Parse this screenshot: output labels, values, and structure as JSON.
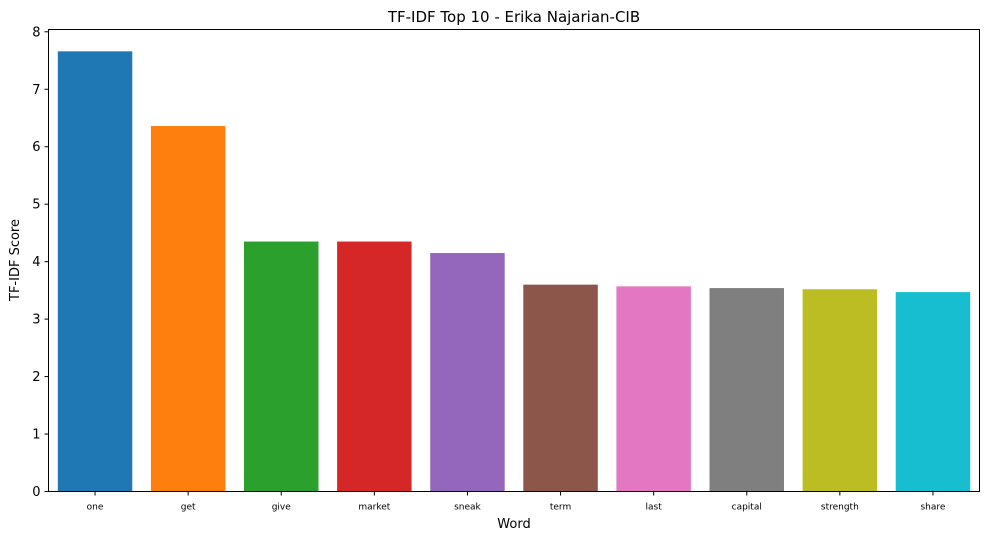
{
  "chart_data": {
    "type": "bar",
    "title": "TF-IDF Top 10 - Erika Najarian-CIB",
    "xlabel": "Word",
    "ylabel": "TF-IDF Score",
    "categories": [
      "one",
      "get",
      "give",
      "market",
      "sneak",
      "term",
      "last",
      "capital",
      "strength",
      "share"
    ],
    "values": [
      7.66,
      6.36,
      4.35,
      4.35,
      4.15,
      3.6,
      3.57,
      3.54,
      3.52,
      3.47
    ],
    "colors": [
      "#1f77b4",
      "#ff7f0e",
      "#2ca02c",
      "#d62728",
      "#9467bd",
      "#8c564b",
      "#e377c2",
      "#7f7f7f",
      "#bcbd22",
      "#17becf"
    ],
    "ylim": [
      0,
      8.04
    ],
    "yticks": [
      0,
      1,
      2,
      3,
      4,
      5,
      6,
      7,
      8
    ],
    "grid": false,
    "legend": "none"
  }
}
